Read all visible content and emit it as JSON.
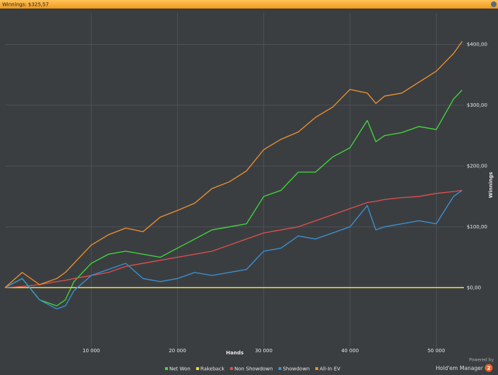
{
  "chart_data": {
    "type": "line",
    "title": "Winnings: $325,57",
    "x_label": "Hands",
    "y_label": "Winnings",
    "x": [
      0,
      2000,
      4000,
      6000,
      7000,
      8000,
      10000,
      12000,
      14000,
      16000,
      18000,
      20000,
      22000,
      24000,
      26000,
      28000,
      30000,
      32000,
      34000,
      36000,
      38000,
      40000,
      42000,
      43000,
      44000,
      46000,
      48000,
      50000,
      52000,
      53000
    ],
    "series": [
      {
        "name": "Net Won",
        "color": "#3fdc3a",
        "values": [
          0,
          15,
          -20,
          -30,
          -20,
          10,
          40,
          55,
          60,
          55,
          50,
          65,
          80,
          95,
          100,
          105,
          150,
          160,
          190,
          190,
          215,
          230,
          275,
          240,
          250,
          255,
          265,
          260,
          310,
          325
        ]
      },
      {
        "name": "Rakeback",
        "color": "#f2e32a",
        "values": [
          0,
          0,
          0,
          0,
          0,
          0,
          0,
          0,
          0,
          0,
          0,
          0,
          0,
          0,
          0,
          0,
          0,
          0,
          0,
          0,
          0,
          0,
          0,
          0,
          0,
          0,
          0,
          0,
          0,
          0
        ]
      },
      {
        "name": "Non Showdown",
        "color": "#e0504e",
        "values": [
          0,
          2,
          5,
          10,
          12,
          15,
          20,
          25,
          35,
          40,
          45,
          50,
          55,
          60,
          70,
          80,
          90,
          95,
          100,
          110,
          120,
          130,
          140,
          142,
          145,
          148,
          150,
          155,
          158,
          160
        ]
      },
      {
        "name": "Showdown",
        "color": "#3a94d8",
        "values": [
          0,
          15,
          -20,
          -35,
          -30,
          -5,
          20,
          30,
          40,
          15,
          10,
          15,
          25,
          20,
          25,
          30,
          60,
          65,
          85,
          80,
          90,
          100,
          135,
          95,
          100,
          105,
          110,
          105,
          150,
          160
        ]
      },
      {
        "name": "All-In EV",
        "color": "#f0922e",
        "values": [
          0,
          25,
          5,
          15,
          25,
          40,
          70,
          87,
          98,
          92,
          116,
          127,
          139,
          163,
          174,
          192,
          227,
          244,
          256,
          280,
          297,
          326,
          320,
          303,
          315,
          320,
          338,
          356,
          385,
          405
        ]
      }
    ],
    "xlim": [
      0,
      53200
    ],
    "ylim": [
      -98,
      452
    ],
    "xticks": [
      {
        "value": 10000,
        "label": "10 000"
      },
      {
        "value": 20000,
        "label": "20 000"
      },
      {
        "value": 30000,
        "label": "30 000"
      },
      {
        "value": 40000,
        "label": "40 000"
      },
      {
        "value": 50000,
        "label": "50 000"
      }
    ],
    "yticks": [
      {
        "value": 0,
        "label": "$0,00"
      },
      {
        "value": 100,
        "label": "$100,00"
      },
      {
        "value": 200,
        "label": "$200,00"
      },
      {
        "value": 300,
        "label": "$300,00"
      },
      {
        "value": 400,
        "label": "$400,00"
      }
    ],
    "grid": true,
    "legend": "bottom",
    "branding": {
      "powered": "Powered by",
      "product": "Hold'em Manager",
      "version": "2"
    }
  }
}
